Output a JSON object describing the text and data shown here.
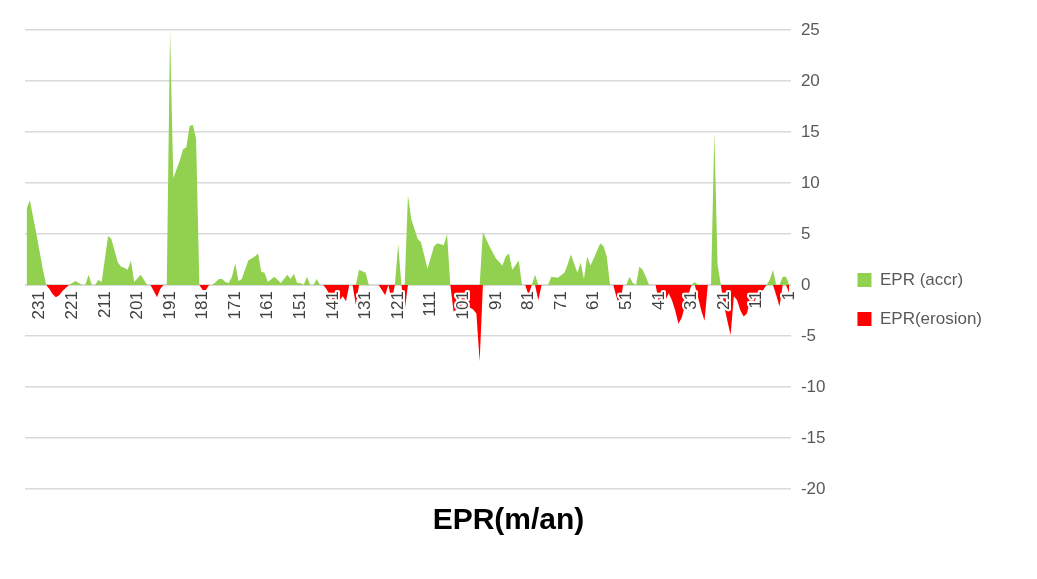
{
  "chart_data": {
    "type": "area",
    "title": "EPR(m/an)",
    "xlim": [
      235.5,
      0.5
    ],
    "xticks": [
      231,
      221,
      211,
      201,
      191,
      181,
      171,
      161,
      151,
      141,
      131,
      121,
      111,
      101,
      91,
      81,
      71,
      61,
      51,
      41,
      31,
      21,
      11,
      1
    ],
    "ylim": [
      -20,
      25
    ],
    "yticks": [
      -20,
      -15,
      -10,
      -5,
      0,
      5,
      10,
      15,
      20,
      25
    ],
    "grid": "y",
    "legend": "right",
    "marker": "none",
    "series": [
      {
        "name": "EPR (accr)",
        "color": "#92d050",
        "x": [
          235,
          234,
          232,
          230,
          229,
          222,
          220,
          218,
          217,
          216,
          215,
          214,
          213,
          212,
          210,
          209,
          207,
          206,
          205,
          204,
          203,
          202,
          200,
          198,
          192,
          191,
          190,
          188,
          187,
          186,
          185,
          184,
          183,
          182,
          178,
          177,
          176,
          175,
          174,
          173,
          172,
          171,
          170,
          169,
          167,
          165,
          164,
          163,
          162,
          161,
          159,
          157,
          155,
          154,
          153,
          152,
          151,
          150,
          149,
          148,
          147,
          146,
          145,
          134,
          133,
          131,
          130,
          122,
          121,
          120,
          119,
          118,
          117,
          115,
          114,
          112,
          110,
          109,
          107,
          106,
          105,
          96,
          95,
          93,
          91,
          89,
          88,
          87,
          86,
          84,
          83,
          80,
          79,
          78,
          75,
          74,
          72,
          70,
          69,
          68,
          66,
          65,
          64,
          63,
          62,
          61,
          59,
          58,
          57,
          56,
          51,
          50,
          49,
          48,
          47,
          46,
          45,
          44,
          31,
          30,
          29,
          25,
          24,
          23,
          22,
          8,
          7,
          6,
          5,
          4,
          3,
          2,
          1
        ],
        "values": [
          7.5,
          8.3,
          5,
          1.5,
          0,
          0,
          0.4,
          0,
          0,
          1,
          0,
          0,
          0.5,
          0.3,
          4.8,
          4.5,
          2.2,
          1.8,
          1.7,
          1.5,
          2.4,
          0.3,
          1,
          0,
          0,
          25,
          10.5,
          12.2,
          13.3,
          13.5,
          15.6,
          15.7,
          14.3,
          0,
          0,
          0.3,
          0.6,
          0.6,
          0.3,
          0.2,
          0.8,
          2.1,
          0.4,
          0.6,
          2.4,
          2.8,
          3.1,
          1.3,
          1.2,
          0.3,
          0.8,
          0.2,
          1,
          0.6,
          1.1,
          0.2,
          0.2,
          0,
          0.8,
          0,
          0,
          0.6,
          0,
          0,
          1.5,
          1.2,
          0,
          0,
          4,
          0,
          0,
          8.8,
          6.5,
          4.5,
          4.2,
          1.6,
          3.8,
          4.1,
          3.9,
          5,
          0,
          0,
          5.2,
          3.8,
          2.6,
          1.9,
          2.8,
          3.1,
          1.5,
          2.4,
          0,
          0,
          1,
          0,
          0,
          0.8,
          0.7,
          1.2,
          2,
          3,
          1.2,
          2.2,
          0.6,
          2.8,
          1.9,
          2.6,
          4.1,
          3.8,
          2.8,
          0,
          0,
          0.8,
          0.2,
          0,
          1.8,
          1.5,
          0.8,
          0,
          0,
          0.3,
          0,
          0,
          15,
          2,
          0,
          0,
          0.5,
          1.5,
          0,
          0,
          0.8,
          0.8,
          0
        ]
      },
      {
        "name": "EPR(erosion)",
        "color": "#ff0000",
        "x": [
          229,
          228,
          227,
          226,
          225,
          224,
          223,
          222,
          197,
          196,
          195,
          194,
          193,
          182,
          181,
          180,
          179,
          144,
          143,
          142,
          141,
          140,
          139,
          138,
          137,
          136,
          135,
          134,
          133,
          127,
          126,
          125,
          124,
          123,
          122,
          120,
          119,
          118,
          105,
          104,
          103,
          102,
          101,
          100,
          99,
          98,
          97,
          96,
          95,
          82,
          81,
          80,
          79,
          78,
          77,
          55,
          54,
          53,
          52,
          42,
          41,
          40,
          39,
          38,
          37,
          36,
          35,
          34,
          33,
          32,
          31,
          30,
          29,
          28,
          27,
          26,
          22,
          21,
          20,
          19,
          18,
          17,
          16,
          15,
          14,
          13,
          12,
          11,
          10,
          9,
          8,
          6,
          5,
          4,
          3,
          2,
          1
        ],
        "values": [
          0,
          -0.4,
          -0.9,
          -1.2,
          -1,
          -0.6,
          -0.3,
          0,
          0,
          -0.6,
          -1.2,
          -0.4,
          0,
          0,
          -0.5,
          -0.5,
          0,
          0,
          -0.4,
          -1,
          -1.5,
          -1.8,
          -1.5,
          -1.1,
          -1.6,
          0,
          0,
          -1.9,
          0,
          0,
          -0.5,
          -1,
          0,
          -1.5,
          0,
          0,
          -2.5,
          0,
          0,
          -2.6,
          -2.4,
          -2.2,
          -1.8,
          -2,
          -2.2,
          -2.4,
          -2.8,
          -7.5,
          0,
          0,
          -1,
          0,
          0,
          -1.5,
          0,
          0,
          -1.2,
          -2.2,
          0,
          0,
          -1.8,
          -1.2,
          -1.5,
          -0.8,
          -1.5,
          -2.5,
          -3.8,
          -3.2,
          -2,
          -1,
          0,
          0,
          -1.2,
          -2.5,
          -3.5,
          0,
          0,
          -2,
          -3.5,
          -4.9,
          -1.1,
          -1.5,
          -2.5,
          -3.1,
          -2.8,
          -1.5,
          -1.8,
          -1.2,
          -0.8,
          -0.5,
          0,
          0,
          -1,
          -2.1,
          0,
          0,
          -0.8
        ]
      }
    ]
  }
}
